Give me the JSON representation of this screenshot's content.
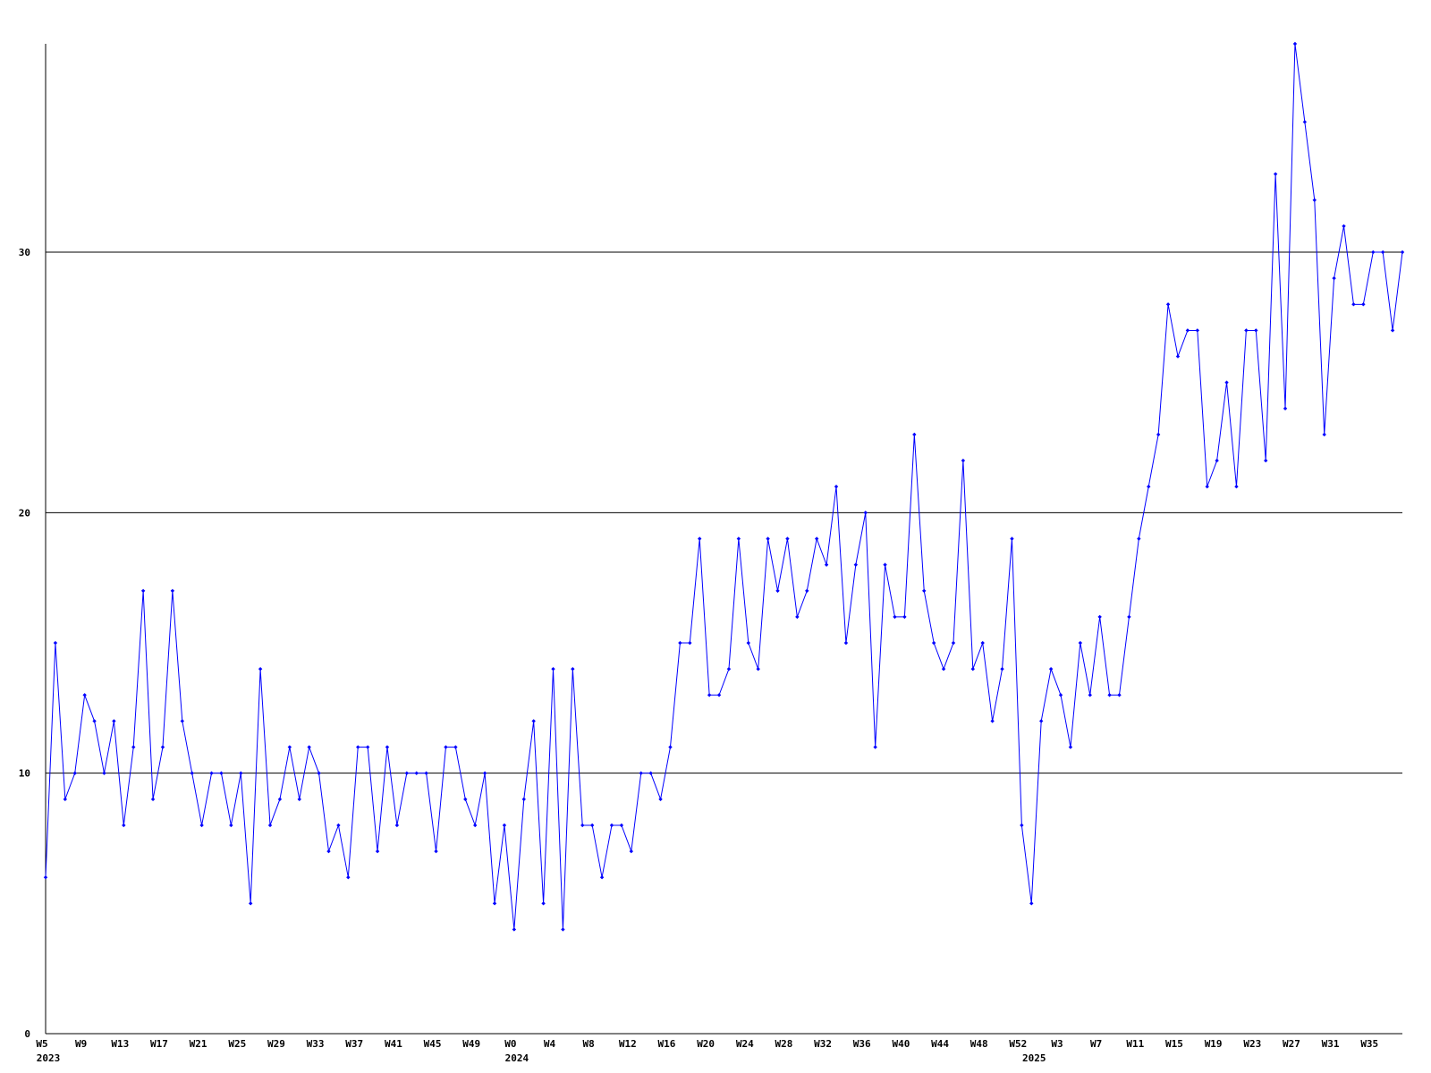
{
  "chart_data": {
    "type": "line",
    "categories": [
      "W5",
      null,
      null,
      null,
      "W9",
      null,
      null,
      null,
      "W13",
      null,
      null,
      null,
      "W17",
      null,
      null,
      null,
      "W21",
      null,
      null,
      null,
      "W25",
      null,
      null,
      null,
      "W29",
      null,
      null,
      null,
      "W33",
      null,
      null,
      null,
      "W37",
      null,
      null,
      null,
      "W41",
      null,
      null,
      null,
      "W45",
      null,
      null,
      null,
      "W49",
      null,
      null,
      null,
      "W0",
      null,
      null,
      null,
      "W4",
      null,
      null,
      null,
      "W8",
      null,
      null,
      null,
      "W12",
      null,
      null,
      null,
      "W16",
      null,
      null,
      null,
      "W20",
      null,
      null,
      null,
      "W24",
      null,
      null,
      null,
      "W28",
      null,
      null,
      null,
      "W32",
      null,
      null,
      null,
      "W36",
      null,
      null,
      null,
      "W40",
      null,
      null,
      null,
      "W44",
      null,
      null,
      null,
      "W48",
      null,
      null,
      null,
      "W52",
      null,
      null,
      null,
      "W3",
      null,
      null,
      null,
      "W7",
      null,
      null,
      null,
      "W11",
      null,
      null,
      null,
      "W15",
      null,
      null,
      null,
      "W19",
      null,
      null,
      null,
      "W23",
      null,
      null,
      null,
      "W27",
      null,
      null,
      null,
      "W31",
      null,
      null,
      null,
      "W35",
      null,
      null,
      null
    ],
    "year_labels": [
      "2023",
      null,
      null,
      null,
      null,
      null,
      null,
      null,
      null,
      null,
      null,
      null,
      null,
      null,
      null,
      null,
      null,
      null,
      null,
      null,
      null,
      null,
      null,
      null,
      null,
      null,
      null,
      null,
      null,
      null,
      null,
      null,
      null,
      null,
      null,
      null,
      null,
      null,
      null,
      null,
      null,
      null,
      null,
      null,
      null,
      null,
      null,
      null,
      "2024",
      null,
      null,
      null,
      null,
      null,
      null,
      null,
      null,
      null,
      null,
      null,
      null,
      null,
      null,
      null,
      null,
      null,
      null,
      null,
      null,
      null,
      null,
      null,
      null,
      null,
      null,
      null,
      null,
      null,
      null,
      null,
      null,
      null,
      null,
      null,
      null,
      null,
      null,
      null,
      null,
      null,
      null,
      null,
      null,
      null,
      null,
      null,
      null,
      null,
      null,
      null,
      null,
      "2025",
      null,
      null,
      null,
      null,
      null,
      null,
      null,
      null,
      null,
      null,
      null,
      null,
      null,
      null,
      null,
      null,
      null,
      null,
      null,
      null,
      null,
      null,
      null,
      null,
      null,
      null,
      null,
      null,
      null,
      null,
      null,
      null,
      null,
      null,
      null,
      null,
      null
    ],
    "values": [
      6,
      15,
      9,
      10,
      13,
      12,
      10,
      12,
      8,
      11,
      17,
      9,
      11,
      17,
      12,
      10,
      8,
      10,
      10,
      8,
      10,
      5,
      14,
      8,
      9,
      11,
      9,
      11,
      10,
      7,
      8,
      6,
      11,
      11,
      7,
      11,
      8,
      10,
      10,
      10,
      7,
      11,
      11,
      9,
      8,
      10,
      5,
      8,
      4,
      9,
      12,
      5,
      14,
      4,
      14,
      8,
      8,
      6,
      8,
      8,
      7,
      10,
      10,
      9,
      11,
      15,
      15,
      19,
      13,
      13,
      14,
      19,
      15,
      14,
      19,
      17,
      19,
      16,
      17,
      19,
      18,
      21,
      15,
      18,
      20,
      11,
      18,
      16,
      16,
      23,
      17,
      15,
      14,
      15,
      22,
      14,
      15,
      12,
      14,
      19,
      8,
      5,
      12,
      14,
      13,
      11,
      15,
      13,
      16,
      13,
      13,
      16,
      19,
      21,
      23,
      28,
      26,
      27,
      27,
      21,
      22,
      25,
      21,
      27,
      27,
      22,
      33,
      24,
      38,
      35,
      32,
      23,
      29,
      31,
      28,
      28,
      30,
      30,
      27,
      30
    ],
    "color": "#0000ff",
    "ylim": [
      0,
      38
    ],
    "yticks": [
      0,
      10,
      20,
      30
    ],
    "grid": true
  }
}
